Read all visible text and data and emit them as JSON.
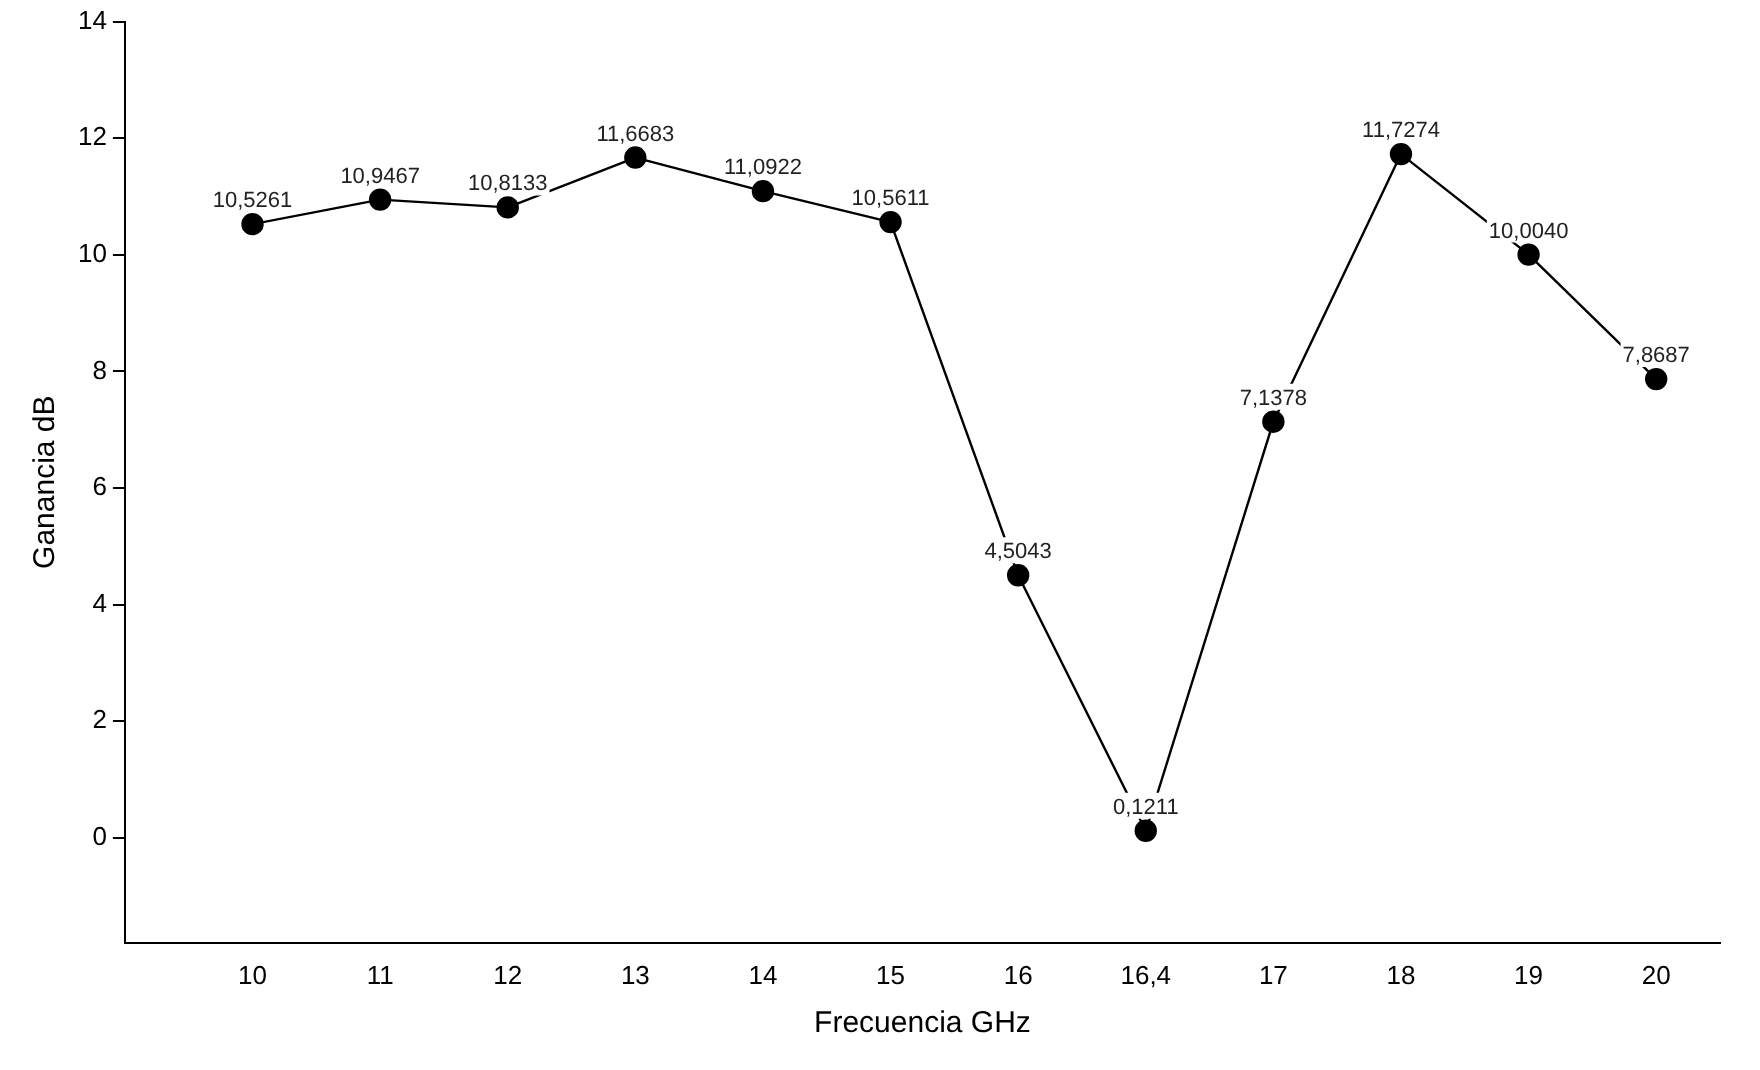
{
  "chart_data": {
    "type": "line",
    "xlabel": "Frecuencia GHz",
    "ylabel": "Ganancia dB",
    "categories": [
      "10",
      "11",
      "12",
      "13",
      "14",
      "15",
      "16",
      "16,4",
      "17",
      "18",
      "19",
      "20"
    ],
    "series": [
      {
        "color": "#000000",
        "values": [
          10.5261,
          10.9467,
          10.8133,
          11.6683,
          11.0922,
          10.5611,
          4.5043,
          0.1211,
          7.1378,
          11.7274,
          10.004,
          7.8687
        ],
        "value_labels": [
          "10,5261",
          "10,9467",
          "10,8133",
          "11,6683",
          "11,0922",
          "10,5611",
          "4,5043",
          "0,1211",
          "7,1378",
          "11,7274",
          "10,0040",
          "7,8687"
        ]
      }
    ],
    "ylim": [
      -1.8,
      14
    ],
    "yticks": [
      0,
      2,
      4,
      6,
      8,
      10,
      12,
      14
    ],
    "grid": false,
    "legend": false,
    "marker": "circle",
    "line_style": "solid"
  }
}
